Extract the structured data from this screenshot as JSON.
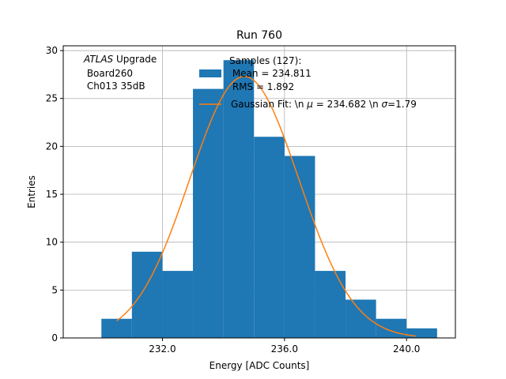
{
  "chart_data": {
    "type": "bar",
    "title": "Run 760",
    "xlabel": "Energy [ADC Counts]",
    "ylabel": "Entries",
    "xlim": [
      228.75,
      241.6
    ],
    "ylim": [
      0,
      30.5
    ],
    "grid": true,
    "x_ticks": [
      232.0,
      236.0,
      240.0
    ],
    "x_tick_labels": [
      "232.0",
      "236.0",
      "240.0"
    ],
    "y_ticks": [
      0,
      5,
      10,
      15,
      20,
      25,
      30
    ],
    "y_tick_labels": [
      "0",
      "5",
      "10",
      "15",
      "20",
      "25",
      "30"
    ],
    "bin_edges": [
      230.0,
      231.0,
      232.0,
      233.0,
      234.0,
      235.0,
      236.0,
      237.0,
      238.0,
      239.0,
      240.0,
      241.0
    ],
    "values": [
      2,
      9,
      7,
      26,
      29,
      21,
      19,
      7,
      4,
      2,
      1
    ],
    "bar_color": "#1f77b4",
    "fit": {
      "mu": 234.682,
      "sigma": 1.79,
      "amplitude": 27.3,
      "x_range": [
        230.5,
        240.3
      ],
      "color": "#ff7f0e"
    },
    "annotation": {
      "line1_italic": "ATLAS",
      "line1_rest": " Upgrade",
      "line2": " Board260",
      "line3": " Ch013 35dB"
    },
    "legend": {
      "placement": "top-right",
      "header": "Samples (127):",
      "entries": [
        {
          "label": " Mean = 234.811",
          "kind": "patch"
        },
        {
          "label": " RMS = 1.892",
          "kind": "none"
        },
        {
          "label_prefix": "Gaussian Fit: \\n ",
          "label_mu": "μ",
          "label_mid": " = 234.682 \\n ",
          "label_sigma": "σ",
          "label_suffix": "=1.79",
          "kind": "line"
        }
      ]
    }
  }
}
